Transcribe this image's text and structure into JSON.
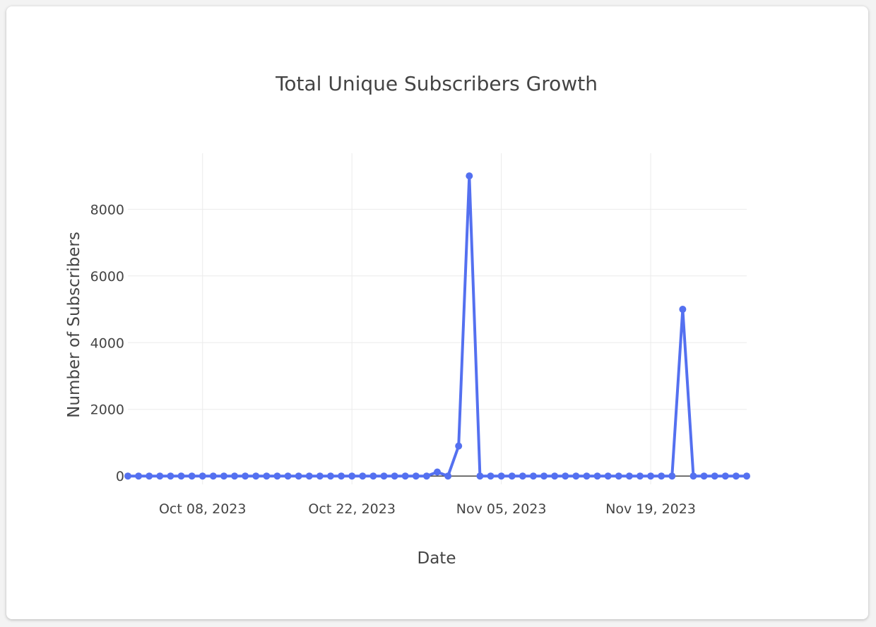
{
  "chart_data": {
    "type": "line",
    "title": "Total Unique Subscribers Growth",
    "xlabel": "Date",
    "ylabel": "Number of Subscribers",
    "x_start": "2023-10-01",
    "x_end": "2023-11-28",
    "x_ticks": [
      {
        "date": "2023-10-08",
        "label": "Oct 08, 2023"
      },
      {
        "date": "2023-10-22",
        "label": "Oct 22, 2023"
      },
      {
        "date": "2023-11-05",
        "label": "Nov 05, 2023"
      },
      {
        "date": "2023-11-19",
        "label": "Nov 19, 2023"
      }
    ],
    "y_ticks": [
      0,
      2000,
      4000,
      6000,
      8000
    ],
    "y_tick_labels": [
      "0",
      "2000",
      "4000",
      "6000",
      "8000"
    ],
    "ylim": [
      -250,
      9680
    ],
    "grid": true,
    "series": [
      {
        "name": "Subscribers",
        "color": "#5470f0",
        "nonzero": {
          "2023-10-30": 120,
          "2023-11-01": 900,
          "2023-11-02": 9000,
          "2023-11-22": 5000
        }
      }
    ]
  }
}
